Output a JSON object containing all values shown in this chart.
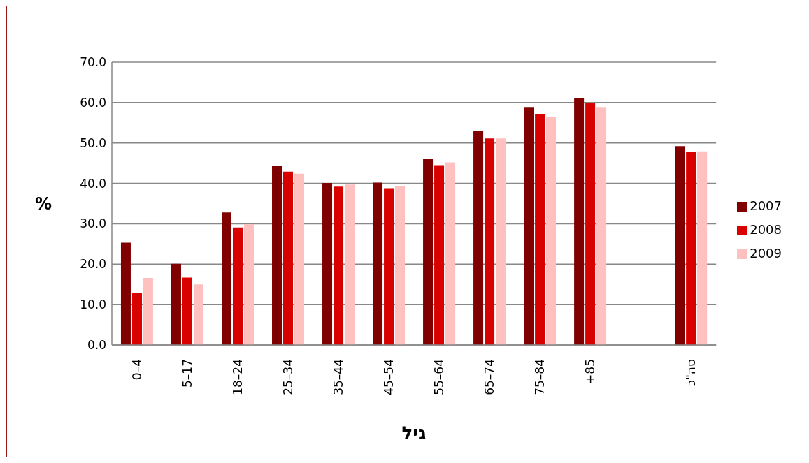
{
  "chart_data": {
    "type": "bar",
    "xlabel": "גיל",
    "ylabel": "%",
    "categories": [
      "0–4",
      "5–17",
      "18–24",
      "25–34",
      "35–44",
      "45–54",
      "55–64",
      "65–74",
      "75–84",
      "+85",
      null,
      "סה\"כ"
    ],
    "series": [
      {
        "name": "2007",
        "color": "#800000",
        "values": [
          25.3,
          20.1,
          32.8,
          44.3,
          40.1,
          40.2,
          46.1,
          52.9,
          58.9,
          61.1,
          null,
          49.2
        ]
      },
      {
        "name": "2008",
        "color": "#d90000",
        "values": [
          12.8,
          16.7,
          29.1,
          42.9,
          39.2,
          38.8,
          44.5,
          51.1,
          57.2,
          59.8,
          null,
          47.7
        ]
      },
      {
        "name": "2009",
        "color": "#ffc0c0",
        "values": [
          16.6,
          15.0,
          29.9,
          42.4,
          39.7,
          39.4,
          45.2,
          51.1,
          56.4,
          58.9,
          null,
          47.9
        ]
      }
    ],
    "ylim": [
      0,
      70
    ],
    "yticks": [
      {
        "value": 0,
        "label": "0.0"
      },
      {
        "value": 10,
        "label": "10.0"
      },
      {
        "value": 20,
        "label": "20.0"
      },
      {
        "value": 30,
        "label": "30.0"
      },
      {
        "value": 40,
        "label": "40.0"
      },
      {
        "value": 50,
        "label": "50.0"
      },
      {
        "value": 60,
        "label": "60.0"
      },
      {
        "value": 70,
        "label": "70.0"
      }
    ],
    "grid": "y",
    "legend": "right"
  }
}
